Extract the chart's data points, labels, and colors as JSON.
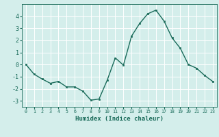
{
  "x": [
    0,
    1,
    2,
    3,
    4,
    5,
    6,
    7,
    8,
    9,
    10,
    11,
    12,
    13,
    14,
    15,
    16,
    17,
    18,
    19,
    20,
    21,
    22,
    23
  ],
  "y": [
    0.0,
    -0.8,
    -1.2,
    -1.55,
    -1.4,
    -1.85,
    -1.85,
    -2.2,
    -2.95,
    -2.85,
    -1.3,
    0.55,
    -0.05,
    2.35,
    3.4,
    4.2,
    4.5,
    3.6,
    2.2,
    1.35,
    0.0,
    -0.3,
    -0.9,
    -1.4
  ],
  "line_color": "#1a6b5a",
  "marker": "s",
  "marker_size": 1.8,
  "xlabel": "Humidex (Indice chaleur)",
  "ylim": [
    -3.5,
    5.0
  ],
  "xlim": [
    -0.5,
    23.5
  ],
  "yticks": [
    -3,
    -2,
    -1,
    0,
    1,
    2,
    3,
    4
  ],
  "xticks": [
    0,
    1,
    2,
    3,
    4,
    5,
    6,
    7,
    8,
    9,
    10,
    11,
    12,
    13,
    14,
    15,
    16,
    17,
    18,
    19,
    20,
    21,
    22,
    23
  ],
  "bg_color": "#d4eeeb",
  "grid_color": "#ffffff",
  "tick_color": "#1a6b5a",
  "label_color": "#1a6b5a",
  "line_width": 1.0,
  "xlabel_fontsize": 6.5,
  "xtick_fontsize": 4.8,
  "ytick_fontsize": 6.0
}
